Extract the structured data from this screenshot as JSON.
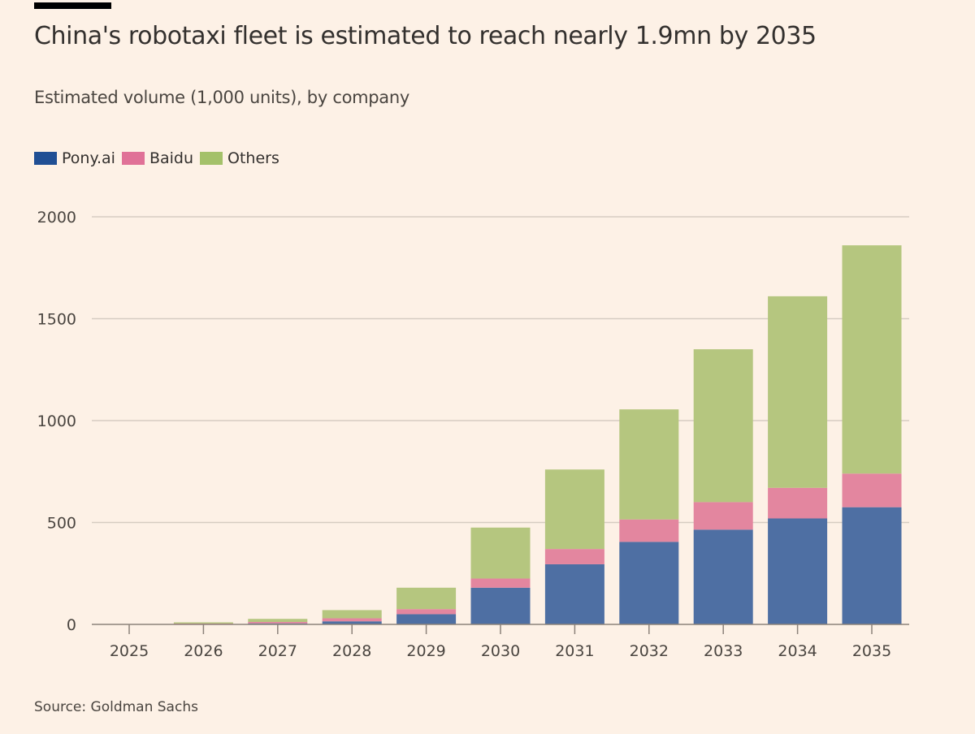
{
  "header": {
    "title": "China's robotaxi fleet is estimated to reach nearly 1.9mn by 2035",
    "subtitle": "Estimated volume (1,000 units), by company"
  },
  "footer": {
    "source": "Source: Goldman Sachs"
  },
  "chart_data": {
    "type": "bar",
    "stacked": true,
    "title": "China's robotaxi fleet is estimated to reach nearly 1.9mn by 2035",
    "subtitle": "Estimated volume (1,000 units), by company",
    "xlabel": "",
    "ylabel": "",
    "ylim": [
      0,
      2000
    ],
    "yticks": [
      0,
      500,
      1000,
      1500,
      2000
    ],
    "grid": true,
    "legend_position": "top-left",
    "categories": [
      "2025",
      "2026",
      "2027",
      "2028",
      "2029",
      "2030",
      "2031",
      "2032",
      "2033",
      "2034",
      "2035"
    ],
    "series": [
      {
        "name": "Pony.ai",
        "color": "#4e6fa3",
        "legend_color": "#204f94",
        "values": [
          0,
          2,
          5,
          15,
          50,
          180,
          295,
          405,
          465,
          520,
          575
        ]
      },
      {
        "name": "Baidu",
        "color": "#e3869f",
        "legend_color": "#e07197",
        "values": [
          0,
          2,
          7,
          15,
          25,
          45,
          75,
          110,
          135,
          150,
          165
        ]
      },
      {
        "name": "Others",
        "color": "#b5c67f",
        "legend_color": "#a4c16a",
        "values": [
          0,
          6,
          15,
          40,
          105,
          250,
          390,
          540,
          750,
          940,
          1120
        ]
      }
    ],
    "source": "Source: Goldman Sachs"
  }
}
